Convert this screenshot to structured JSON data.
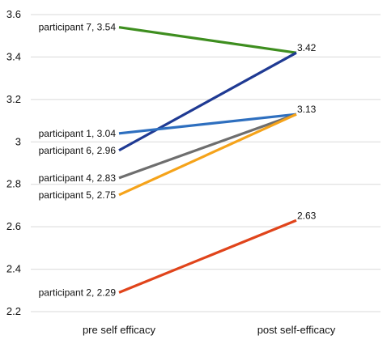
{
  "chart_data": {
    "type": "line",
    "categories": [
      "pre self efficacy",
      "post self-efficacy"
    ],
    "ylim": [
      2.2,
      3.6
    ],
    "yticks": [
      "2.2",
      "2.4",
      "2.6",
      "2.8",
      "3",
      "3.2",
      "3.4",
      "3.6"
    ],
    "grid": true,
    "series": [
      {
        "name": "participant 7",
        "values": [
          3.54,
          3.42
        ],
        "color": "#3e8e1f",
        "pre_label": "participant 7, 3.54",
        "post_label": "3.42"
      },
      {
        "name": "participant 6",
        "values": [
          2.96,
          3.42
        ],
        "color": "#1f3a93",
        "pre_label": "participant 6, 2.96",
        "post_label": ""
      },
      {
        "name": "participant 1",
        "values": [
          3.04,
          3.13
        ],
        "color": "#2e6fbf",
        "pre_label": "participant 1, 3.04",
        "post_label": "3.13"
      },
      {
        "name": "participant 4",
        "values": [
          2.83,
          3.13
        ],
        "color": "#6e6e6e",
        "pre_label": "participant 4, 2.83",
        "post_label": ""
      },
      {
        "name": "participant 5",
        "values": [
          2.75,
          3.13
        ],
        "color": "#f5a31a",
        "pre_label": "participant 5, 2.75",
        "post_label": ""
      },
      {
        "name": "participant 2",
        "values": [
          2.29,
          2.63
        ],
        "color": "#e0441b",
        "pre_label": "participant 2, 2.29",
        "post_label": "2.63"
      }
    ]
  }
}
